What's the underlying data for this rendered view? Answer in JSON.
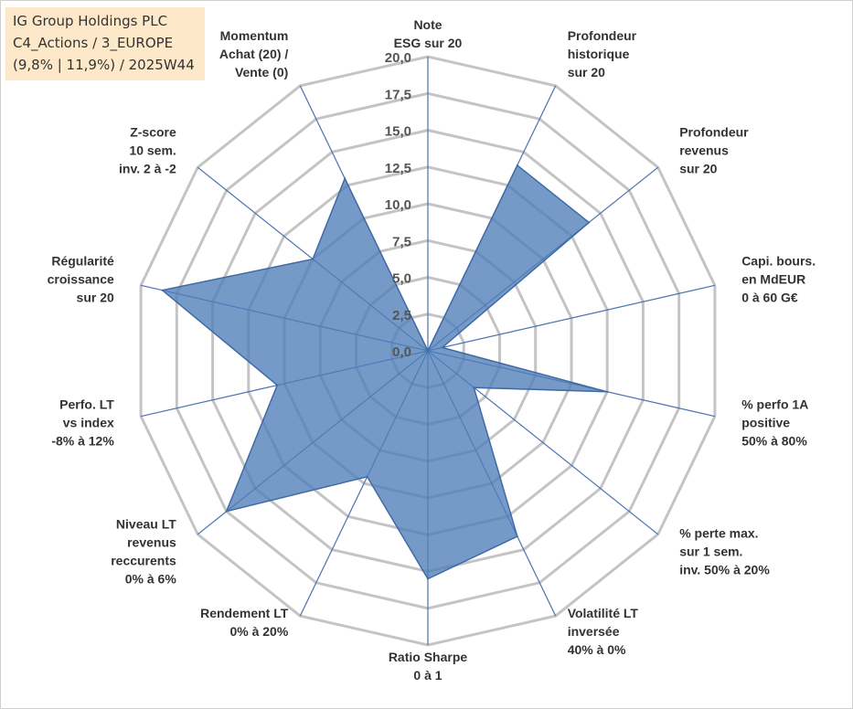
{
  "title_box": {
    "line1": "IG Group Holdings PLC",
    "line2": "C4_Actions / 3_EUROPE",
    "line3": "(9,8% | 11,9%) / 2025W44"
  },
  "chart_data": {
    "type": "radar",
    "title": "IG Group Holdings PLC",
    "range": [
      0,
      20
    ],
    "ticks": [
      "0,0",
      "2,5",
      "5,0",
      "7,5",
      "10,0",
      "12,5",
      "15,0",
      "17,5",
      "20,0"
    ],
    "tick_values": [
      0,
      2.5,
      5,
      7.5,
      10,
      12.5,
      15,
      17.5,
      20
    ],
    "axes": [
      {
        "lines": [
          "Note",
          "ESG sur 20"
        ],
        "value": 0
      },
      {
        "lines": [
          "Profondeur",
          "historique",
          "sur 20"
        ],
        "value": 14
      },
      {
        "lines": [
          "Profondeur",
          "revenus",
          "sur 20"
        ],
        "value": 14
      },
      {
        "lines": [
          "Capi. bours.",
          "en MdEUR",
          "0 à 60 G€"
        ],
        "value": 1
      },
      {
        "lines": [
          "% perfo 1A",
          "positive",
          "50% à 80%"
        ],
        "value": 12.5
      },
      {
        "lines": [
          "% perte max.",
          "sur 1 sem.",
          "inv. 50% à 20%"
        ],
        "value": 4
      },
      {
        "lines": [
          "Volatilité LT",
          "inversée",
          "40% à 0%"
        ],
        "value": 14
      },
      {
        "lines": [
          "Ratio Sharpe",
          "0 à 1"
        ],
        "value": 15.5
      },
      {
        "lines": [
          "Rendement LT",
          "0% à 20%"
        ],
        "value": 9.5
      },
      {
        "lines": [
          "Niveau LT",
          "revenus",
          "reccurents",
          "0% à 6%"
        ],
        "value": 17.5
      },
      {
        "lines": [
          "Perfo. LT",
          "vs index",
          "-8% à 12%"
        ],
        "value": 10.5
      },
      {
        "lines": [
          "Régularité",
          "croissance",
          "sur 20"
        ],
        "value": 18.5
      },
      {
        "lines": [
          "Z-score",
          "10 sem.",
          "inv. 2 à -2"
        ],
        "value": 10
      },
      {
        "lines": [
          "Momentum",
          "Achat (20) /",
          "Vente (0)"
        ],
        "value": 13
      }
    ],
    "colors": {
      "fill": "#4f7db8",
      "fill_opacity": "0.78",
      "stroke": "#3f6aa5",
      "grid": "#c4c4c4",
      "spoke": "#4a72b0",
      "title_bg": "#fde9c9"
    }
  }
}
